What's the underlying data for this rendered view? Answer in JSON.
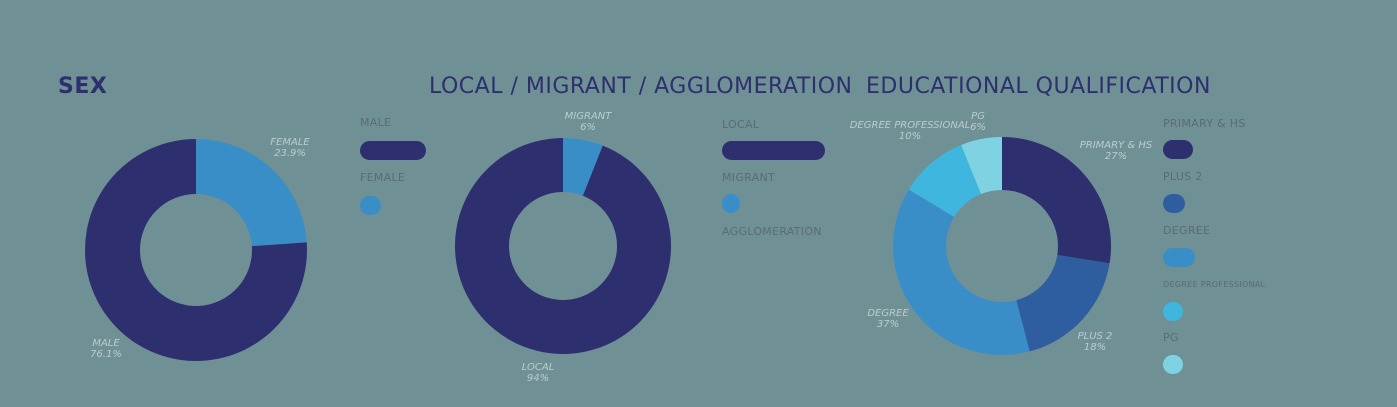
{
  "chart_data": [
    {
      "type": "pie",
      "title": "SEX",
      "slices": [
        {
          "label": "FEMALE",
          "value_label": "23.9%",
          "value": 23.9,
          "color": "#3a8ec7"
        },
        {
          "label": "MALE",
          "value_label": "76.1%",
          "value": 76.1,
          "color": "#2e2f6e"
        }
      ],
      "legend": [
        {
          "label": "MALE",
          "color": "#2e2f6e",
          "bar_value": 76.1
        },
        {
          "label": "FEMALE",
          "color": "#3a8ec7",
          "bar_value": 23.9
        }
      ]
    },
    {
      "type": "pie",
      "title": "LOCAL / MIGRANT / AGGLOMERATION",
      "slices": [
        {
          "label": "MIGRANT",
          "value_label": "6%",
          "value": 6,
          "color": "#3a8ec7"
        },
        {
          "label": "LOCAL",
          "value_label": "94%",
          "value": 94,
          "color": "#2e2f6e"
        }
      ],
      "legend": [
        {
          "label": "LOCAL",
          "color": "#2e2f6e",
          "bar_value": 94
        },
        {
          "label": "MIGRANT",
          "color": "#3a8ec7",
          "bar_value": 6
        },
        {
          "label": "AGGLOMERATION",
          "color": "#6f9195",
          "bar_value": 0
        }
      ]
    },
    {
      "type": "pie",
      "title": "EDUCATIONAL QUALIFICATION",
      "slices": [
        {
          "label": "PRIMARY & HS",
          "value_label": "27%",
          "value": 27,
          "color": "#2e2f6e"
        },
        {
          "label": "PLUS 2",
          "value_label": "18%",
          "value": 18,
          "color": "#2f5ea0"
        },
        {
          "label": "DEGREE",
          "value_label": "37%",
          "value": 37,
          "color": "#3a8ec7"
        },
        {
          "label": "DEGREE PROFESSIONAL",
          "value_label": "10%",
          "value": 10,
          "color": "#3fb6dd"
        },
        {
          "label": "PG",
          "value_label": "6%",
          "value": 6,
          "color": "#7fd2e2"
        }
      ],
      "legend": [
        {
          "label": "PRIMARY & HS",
          "color": "#2e2f6e"
        },
        {
          "label": "PLUS 2",
          "color": "#2f5ea0"
        },
        {
          "label": "DEGREE",
          "color": "#3a8ec7"
        },
        {
          "label": "DEGREE PROFESSIONAL",
          "color": "#3fb6dd"
        },
        {
          "label": "PG",
          "color": "#7fd2e2"
        }
      ]
    }
  ]
}
